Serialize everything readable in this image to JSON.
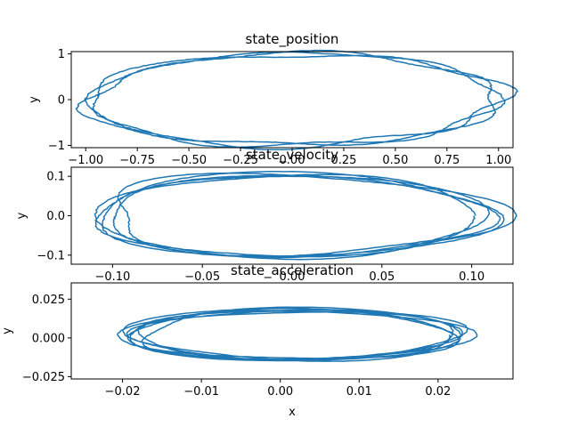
{
  "chart_data": [
    {
      "type": "line",
      "title": "state_position",
      "xlabel": "",
      "ylabel": "y",
      "xlim": [
        -1.07,
        1.07
      ],
      "ylim": [
        -1.05,
        1.05
      ],
      "xticks": [
        -1.0,
        -0.75,
        -0.5,
        -0.25,
        0.0,
        0.25,
        0.5,
        0.75,
        1.0
      ],
      "xtick_labels": [
        "−1.00",
        "−0.75",
        "−0.50",
        "−0.25",
        "0.00",
        "0.25",
        "0.50",
        "0.75",
        "1.00"
      ],
      "yticks": [
        -1,
        0,
        1
      ],
      "ytick_labels": [
        "−1",
        "0",
        "1"
      ],
      "grid": false,
      "series": [
        {
          "shape": "loop",
          "rx": 1.0,
          "ry": 1.0,
          "noise": 0.006,
          "loops": 3,
          "color": "#1f77b4"
        }
      ]
    },
    {
      "type": "line",
      "title": "state_velocity",
      "xlabel": "",
      "ylabel": "y",
      "xlim": [
        -0.123,
        0.123
      ],
      "ylim": [
        -0.123,
        0.123
      ],
      "xticks": [
        -0.1,
        -0.05,
        0.0,
        0.05,
        0.1
      ],
      "xtick_labels": [
        "−0.10",
        "−0.05",
        "0.00",
        "0.05",
        "0.10"
      ],
      "yticks": [
        -0.1,
        0.0,
        0.1
      ],
      "ytick_labels": [
        "−0.1",
        "0.0",
        "0.1"
      ],
      "grid": false,
      "series": [
        {
          "shape": "loop",
          "rx": 0.108,
          "ry": 0.104,
          "noise": 0.006,
          "loops": 5,
          "color": "#1f77b4"
        }
      ]
    },
    {
      "type": "line",
      "title": "state_acceleration",
      "xlabel": "x",
      "ylabel": "y",
      "xlim": [
        -0.0265,
        0.0295
      ],
      "ylim": [
        -0.0265,
        0.0355
      ],
      "xticks": [
        -0.02,
        -0.01,
        0.0,
        0.01,
        0.02
      ],
      "xtick_labels": [
        "−0.02",
        "−0.01",
        "0.00",
        "0.01",
        "0.02"
      ],
      "yticks": [
        -0.025,
        0.0,
        0.025
      ],
      "ytick_labels": [
        "−0.025",
        "0.000",
        "0.025"
      ],
      "grid": false,
      "series": [
        {
          "shape": "loop",
          "rx": 0.021,
          "ry": 0.016,
          "cx": 0.002,
          "cy": 0.002,
          "noise": 0.006,
          "loops": 7,
          "color": "#1f77b4"
        }
      ]
    }
  ]
}
